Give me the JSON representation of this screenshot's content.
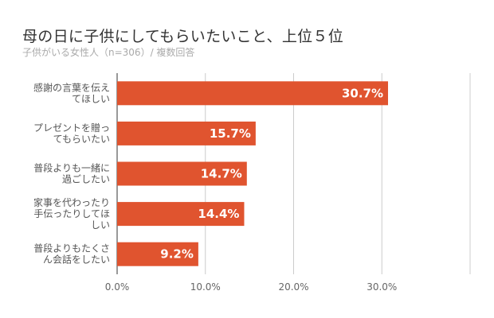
{
  "chart_data": {
    "type": "bar",
    "orientation": "horizontal",
    "title": "母の日に子供にしてもらいたいこと、上位５位",
    "subtitle": "子供がいる女性人（n=306）/ 複数回答",
    "categories": [
      [
        "感謝の言葉を伝え",
        "てほしい"
      ],
      [
        "プレゼントを贈っ",
        "てもらいたい"
      ],
      [
        "普段よりも一緒に",
        "過ごしたい"
      ],
      [
        "家事を代わったり",
        "手伝ったりしてほ",
        "しい"
      ],
      [
        "普段よりもたくさ",
        "ん会話をしたい"
      ]
    ],
    "values": [
      30.7,
      15.7,
      14.7,
      14.4,
      9.2
    ],
    "data_labels": [
      "30.7%",
      "15.7%",
      "14.7%",
      "14.4%",
      "9.2%"
    ],
    "xlim": [
      0,
      40
    ],
    "xticks": [
      0,
      10,
      20,
      30,
      40
    ],
    "xtick_labels": [
      "0.0%",
      "10.0%",
      "20.0%",
      "30.0%",
      ""
    ],
    "grid": true,
    "bar_color": "#e0542f"
  }
}
